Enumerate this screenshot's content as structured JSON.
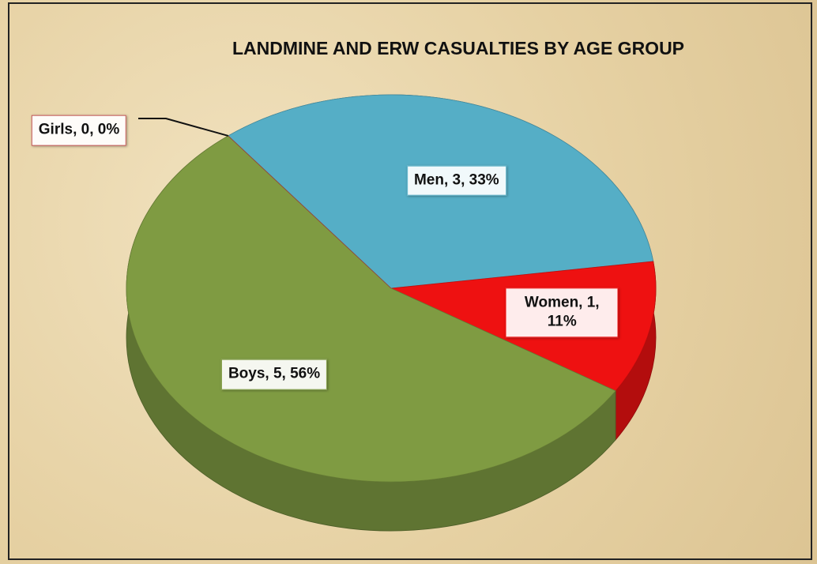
{
  "chart_data": {
    "type": "pie",
    "title": "LANDMINE AND ERW CASUALTIES BY AGE GROUP",
    "categories": [
      "Men",
      "Women",
      "Boys",
      "Girls"
    ],
    "values": [
      3,
      1,
      5,
      0
    ],
    "value_labels": [
      "Men, 3, 33%",
      "Women, 1, 11%",
      "Boys, 5, 56%",
      "Girls, 0, 0%"
    ],
    "colors": [
      "#55aec6",
      "#ee1111",
      "#7f9b42",
      "#c0504d"
    ]
  }
}
